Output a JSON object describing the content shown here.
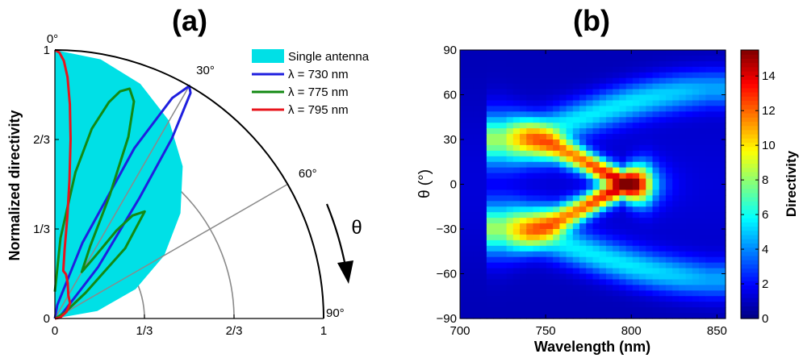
{
  "chart_data": [
    {
      "type": "polar-line",
      "panel_label": "(a)",
      "ylabel": "Normalized directivity",
      "theta_symbol": "θ",
      "radial_ticks": [
        "0",
        "1/3",
        "2/3",
        "1"
      ],
      "radial_tick_values": [
        0,
        0.3333,
        0.6667,
        1
      ],
      "angle_labels": [
        "0°",
        "30°",
        "60°",
        "90°"
      ],
      "angle_label_values": [
        0,
        30,
        60,
        90
      ],
      "grid": true,
      "legend_position": "top-right",
      "series": [
        {
          "name": "Single antenna",
          "style": "filled",
          "color": "#00e0e6",
          "theta_deg": [
            0,
            10,
            20,
            30,
            40,
            50,
            60,
            70,
            80,
            90
          ],
          "r": [
            1.0,
            0.98,
            0.93,
            0.85,
            0.74,
            0.61,
            0.47,
            0.32,
            0.16,
            0.0
          ]
        },
        {
          "name": "λ = 730 nm",
          "color": "#1f1fdf",
          "theta_deg": [
            0,
            10,
            20,
            25,
            28,
            30,
            31,
            33,
            35,
            40,
            50,
            70,
            90
          ],
          "r": [
            0.0,
            0.05,
            0.3,
            0.7,
            0.93,
            1.0,
            0.98,
            0.8,
            0.55,
            0.25,
            0.05,
            0.02,
            0.0
          ]
        },
        {
          "name": "λ = 775 nm",
          "color": "#138913",
          "theta_deg": [
            0,
            4,
            8,
            11,
            14,
            16,
            18,
            20,
            22,
            24,
            26,
            30,
            33,
            35,
            37,
            40,
            45,
            50,
            60,
            90
          ],
          "r": [
            0.1,
            0.3,
            0.55,
            0.72,
            0.83,
            0.88,
            0.9,
            0.86,
            0.73,
            0.5,
            0.3,
            0.2,
            0.28,
            0.4,
            0.48,
            0.52,
            0.37,
            0.15,
            0.04,
            0.0
          ]
        },
        {
          "name": "λ = 795 nm",
          "color": "#e8141c",
          "theta_deg": [
            0,
            1,
            2,
            3,
            4,
            5,
            6,
            7,
            8,
            10,
            14,
            20,
            30,
            45,
            60,
            80,
            90
          ],
          "r": [
            1.0,
            0.99,
            0.96,
            0.9,
            0.8,
            0.67,
            0.52,
            0.38,
            0.26,
            0.18,
            0.17,
            0.14,
            0.1,
            0.08,
            0.05,
            0.02,
            0.0
          ]
        }
      ]
    },
    {
      "type": "heatmap",
      "panel_label": "(b)",
      "xlabel": "Wavelength (nm)",
      "ylabel": "θ (°)",
      "xlim": [
        700,
        855
      ],
      "ylim": [
        -90,
        90
      ],
      "x_ticks": [
        "700",
        "750",
        "800",
        "850"
      ],
      "x_tick_values": [
        700,
        750,
        800,
        850
      ],
      "y_ticks": [
        "−90",
        "−60",
        "−30",
        "0",
        "30",
        "60",
        "90"
      ],
      "y_tick_values": [
        -90,
        -60,
        -30,
        0,
        30,
        60,
        90
      ],
      "colorbar": {
        "label": "Directivity",
        "range": [
          0,
          15.5
        ],
        "ticks": [
          "0",
          "2",
          "4",
          "6",
          "8",
          "10",
          "12",
          "14"
        ],
        "tick_values": [
          0,
          2,
          4,
          6,
          8,
          10,
          12,
          14
        ],
        "colormap": "jet"
      },
      "ridge": {
        "wavelength_nm": [
          725,
          740,
          755,
          770,
          785,
          795,
          800,
          805,
          810
        ],
        "theta_deg": [
          30,
          29,
          25,
          17,
          7,
          1,
          0,
          0,
          0
        ],
        "directivity": [
          4,
          7,
          9.5,
          10.5,
          12,
          14.5,
          15.5,
          13,
          8
        ],
        "width_deg": [
          14,
          10,
          7,
          6,
          6,
          6,
          8,
          9,
          10
        ]
      },
      "side_lobe": {
        "wavelength_nm": [
          725,
          740,
          755,
          770,
          785,
          800,
          815,
          830,
          845
        ],
        "theta_deg": [
          30,
          33,
          38,
          44,
          50,
          55,
          59,
          62,
          64
        ],
        "directivity": [
          3,
          4,
          4.5,
          4.5,
          4.5,
          4.5,
          4.3,
          4,
          3.5
        ]
      }
    }
  ]
}
